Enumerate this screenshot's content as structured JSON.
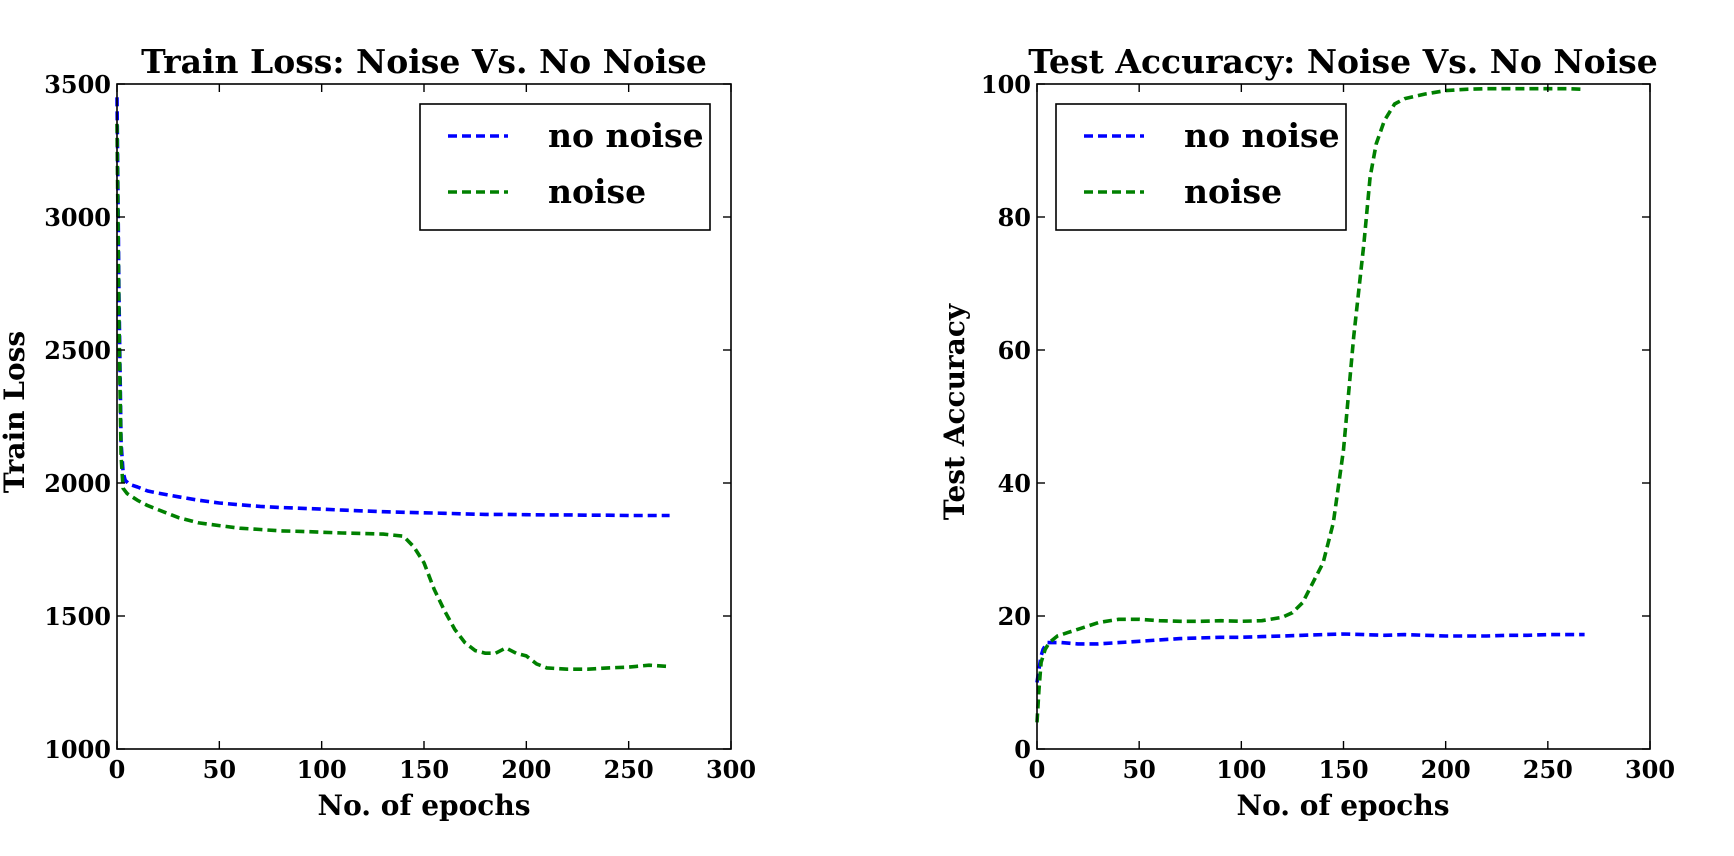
{
  "chart_data": [
    {
      "type": "line",
      "title": "Train Loss: Noise Vs. No Noise",
      "xlabel": "No. of epochs",
      "ylabel": "Train Loss",
      "xlim": [
        0,
        300
      ],
      "ylim": [
        1000,
        3500
      ],
      "xticks": [
        0,
        50,
        100,
        150,
        200,
        250,
        300
      ],
      "yticks": [
        1000,
        1500,
        2000,
        2500,
        3000,
        3500
      ],
      "grid": false,
      "legend_position": "top-right",
      "series": [
        {
          "name": "no noise",
          "color": "#0000ff",
          "x": [
            0,
            1,
            2,
            3,
            4,
            6,
            10,
            15,
            20,
            25,
            30,
            40,
            50,
            60,
            70,
            80,
            90,
            100,
            110,
            120,
            130,
            140,
            150,
            160,
            170,
            180,
            190,
            200,
            210,
            220,
            230,
            240,
            250,
            260,
            270
          ],
          "y": [
            3450,
            2700,
            2150,
            2040,
            2010,
            1995,
            1985,
            1970,
            1962,
            1955,
            1948,
            1935,
            1925,
            1918,
            1912,
            1908,
            1905,
            1902,
            1898,
            1895,
            1892,
            1890,
            1888,
            1886,
            1884,
            1882,
            1882,
            1881,
            1880,
            1880,
            1879,
            1879,
            1878,
            1878,
            1878
          ]
        },
        {
          "name": "noise",
          "color": "#008000",
          "x": [
            0,
            1,
            2,
            3,
            5,
            10,
            15,
            20,
            30,
            40,
            50,
            60,
            70,
            80,
            90,
            100,
            110,
            120,
            130,
            140,
            145,
            150,
            155,
            160,
            165,
            170,
            175,
            180,
            185,
            190,
            195,
            200,
            205,
            210,
            220,
            230,
            240,
            250,
            260,
            270
          ],
          "y": [
            3350,
            2600,
            2100,
            1980,
            1960,
            1935,
            1915,
            1900,
            1870,
            1850,
            1840,
            1830,
            1825,
            1820,
            1818,
            1815,
            1812,
            1810,
            1808,
            1800,
            1760,
            1700,
            1600,
            1520,
            1450,
            1400,
            1370,
            1360,
            1360,
            1380,
            1360,
            1350,
            1320,
            1305,
            1300,
            1300,
            1305,
            1308,
            1315,
            1310
          ]
        }
      ]
    },
    {
      "type": "line",
      "title": "Test Accuracy: Noise Vs. No Noise",
      "xlabel": "No. of epochs",
      "ylabel": "Test Accuracy",
      "xlim": [
        0,
        300
      ],
      "ylim": [
        0,
        100
      ],
      "xticks": [
        0,
        50,
        100,
        150,
        200,
        250,
        300
      ],
      "yticks": [
        0,
        20,
        40,
        60,
        80,
        100
      ],
      "grid": false,
      "legend_position": "top-left",
      "series": [
        {
          "name": "no noise",
          "color": "#0000ff",
          "x": [
            0,
            1,
            2,
            3,
            5,
            8,
            12,
            20,
            30,
            40,
            50,
            60,
            70,
            80,
            90,
            100,
            110,
            120,
            130,
            140,
            150,
            160,
            170,
            180,
            190,
            200,
            210,
            220,
            230,
            240,
            250,
            260,
            268
          ],
          "y": [
            10,
            12,
            14,
            15,
            16,
            16,
            16,
            15.8,
            15.8,
            16,
            16.2,
            16.4,
            16.6,
            16.7,
            16.8,
            16.8,
            16.9,
            17,
            17.1,
            17.2,
            17.3,
            17.2,
            17.1,
            17.2,
            17.1,
            17,
            17,
            17,
            17.1,
            17.1,
            17.2,
            17.2,
            17.2
          ]
        },
        {
          "name": "noise",
          "color": "#008000",
          "x": [
            0,
            1,
            2,
            4,
            6,
            10,
            15,
            20,
            25,
            30,
            40,
            50,
            60,
            70,
            80,
            90,
            100,
            110,
            120,
            125,
            130,
            135,
            140,
            145,
            150,
            155,
            160,
            163,
            166,
            170,
            175,
            180,
            190,
            200,
            210,
            220,
            230,
            240,
            250,
            260,
            268
          ],
          "y": [
            4,
            9,
            13,
            15,
            16,
            17,
            17.5,
            18,
            18.5,
            19,
            19.5,
            19.5,
            19.3,
            19.2,
            19.2,
            19.3,
            19.2,
            19.3,
            19.8,
            20.5,
            22,
            25,
            28,
            34,
            45,
            62,
            76,
            86,
            91,
            94.5,
            97,
            97.8,
            98.5,
            99,
            99.2,
            99.3,
            99.3,
            99.3,
            99.3,
            99.3,
            99.2
          ]
        }
      ]
    }
  ]
}
